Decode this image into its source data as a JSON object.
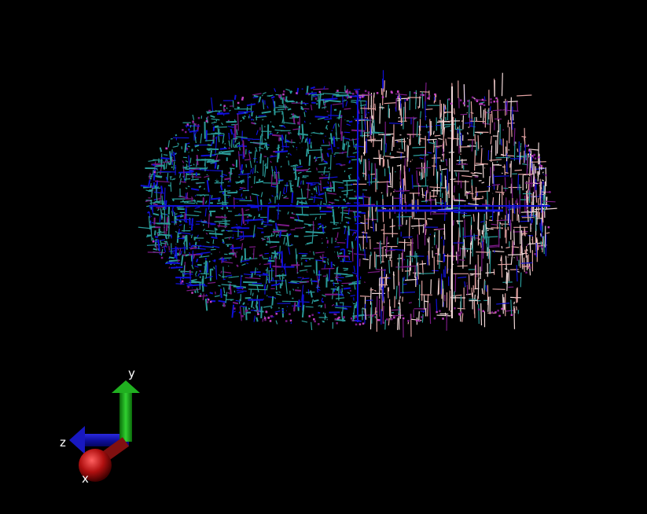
{
  "viewer": {
    "background_color": "#000000",
    "scene": {
      "object": "line-network",
      "colors": {
        "teal": "#2a9a98",
        "blue": "#1010d8",
        "purple": "#7a1a86",
        "pink": "#e0a0a0",
        "pale": "#f0d8d8",
        "magenta": "#c040c0"
      }
    },
    "axes_gizmo": {
      "x_label": "x",
      "y_label": "y",
      "z_label": "z",
      "x_color": "#b01010",
      "y_color": "#10a010",
      "z_color": "#1010a0"
    }
  }
}
